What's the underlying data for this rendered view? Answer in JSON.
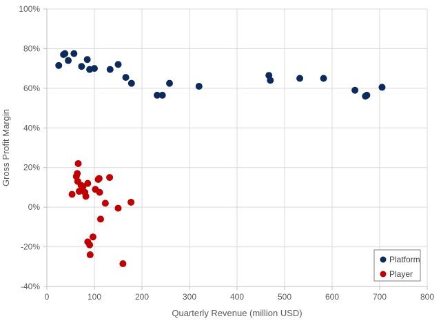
{
  "chart_data": {
    "type": "scatter",
    "xlabel": "Quarterly Revenue (million USD)",
    "ylabel": "Gross Profit Margin",
    "xlim": [
      0,
      800
    ],
    "ylim": [
      -40,
      100
    ],
    "x_ticks": [
      0,
      100,
      200,
      300,
      400,
      500,
      600,
      700,
      800
    ],
    "y_ticks": [
      -40,
      -20,
      0,
      20,
      40,
      60,
      80,
      100
    ],
    "x_tick_labels": [
      "0",
      "100",
      "200",
      "300",
      "400",
      "500",
      "600",
      "700",
      "800"
    ],
    "y_tick_labels": [
      "-40%",
      "-20%",
      "0%",
      "20%",
      "40%",
      "60%",
      "80%",
      "100%"
    ],
    "grid": "vertical and horizontal",
    "legend_position": "bottom-right",
    "series": [
      {
        "name": "Platform",
        "color": "#0d2a5c",
        "points": [
          [
            25,
            71.5
          ],
          [
            35,
            77
          ],
          [
            38,
            77.5
          ],
          [
            45,
            74
          ],
          [
            57,
            77.5
          ],
          [
            73,
            71
          ],
          [
            85,
            74.5
          ],
          [
            90,
            69.5
          ],
          [
            100,
            70
          ],
          [
            133,
            69.5
          ],
          [
            150,
            72
          ],
          [
            166,
            65.5
          ],
          [
            178,
            62.5
          ],
          [
            232,
            56.5
          ],
          [
            243,
            56.5
          ],
          [
            258,
            62.5
          ],
          [
            320,
            61
          ],
          [
            467,
            66.5
          ],
          [
            470,
            64
          ],
          [
            532,
            65
          ],
          [
            582,
            65
          ],
          [
            648,
            59
          ],
          [
            670,
            56
          ],
          [
            673,
            56.5
          ],
          [
            705,
            60.5
          ]
        ]
      },
      {
        "name": "Player",
        "color": "#c00000",
        "points": [
          [
            53,
            6.5
          ],
          [
            62,
            15.5
          ],
          [
            64,
            17
          ],
          [
            65,
            13
          ],
          [
            66,
            22
          ],
          [
            68,
            8
          ],
          [
            72,
            11
          ],
          [
            74,
            9.5
          ],
          [
            76,
            10.5
          ],
          [
            80,
            7.5
          ],
          [
            82,
            5.5
          ],
          [
            86,
            12
          ],
          [
            86,
            -17.5
          ],
          [
            90,
            -19
          ],
          [
            91,
            -24
          ],
          [
            97,
            -15
          ],
          [
            102,
            9
          ],
          [
            108,
            14
          ],
          [
            110,
            14.5
          ],
          [
            111,
            7.5
          ],
          [
            113,
            -6
          ],
          [
            123,
            2
          ],
          [
            132,
            15
          ],
          [
            150,
            -0.5
          ],
          [
            160,
            -28.5
          ],
          [
            177,
            2.5
          ]
        ]
      }
    ]
  }
}
